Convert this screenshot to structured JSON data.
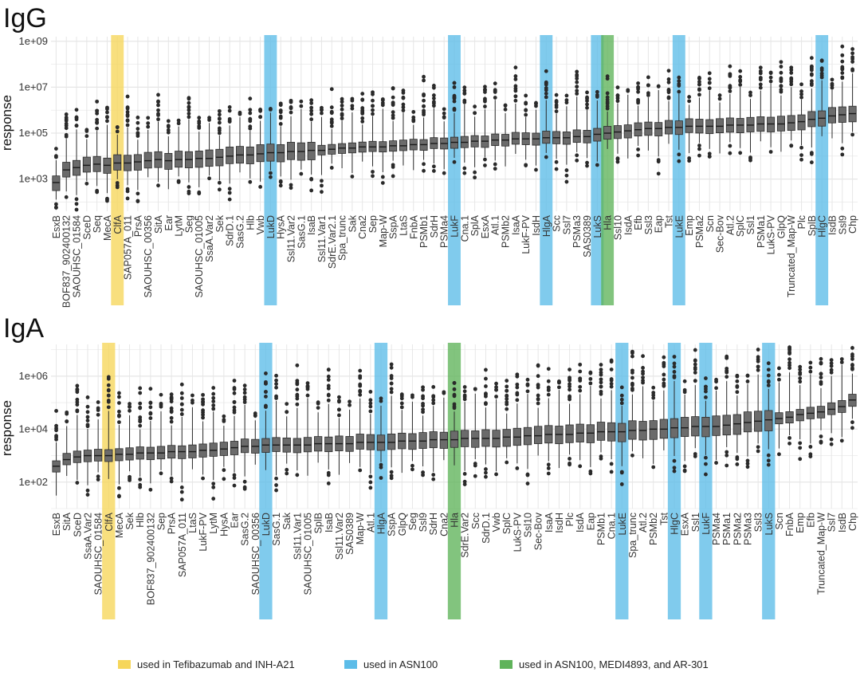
{
  "colors": {
    "yellow": "#f6d65a",
    "blue": "#5cbce8",
    "green": "#5fb35a",
    "box": "#6b6b6b",
    "stroke": "#2b2b2b",
    "grid": "#e6e6e6"
  },
  "legend": [
    {
      "key": "yellow",
      "label": "used in Tefibazumab and INH-A21"
    },
    {
      "key": "blue",
      "label": "used in ASN100"
    },
    {
      "key": "green",
      "label": "used in ASN100, MEDI4893, and AR-301"
    }
  ],
  "chart_data": [
    {
      "type": "boxplot",
      "title": "IgG",
      "ylabel": "response",
      "yscale": "log10",
      "ylim_log10": [
        1.6,
        9.2
      ],
      "yticks_log10": [
        3,
        5,
        7,
        9
      ],
      "ytick_labels": [
        "1e+03",
        "1e+05",
        "1e+07",
        "1e+09"
      ],
      "categories": [
        "EsxB",
        "BOF837_902400132",
        "SAOUHSC_01584",
        "SceD",
        "Seq",
        "MecA",
        "ClfA",
        "SAP057A_011",
        "PrsA",
        "SAOUHSC_00356",
        "SitA",
        "Ear",
        "LytM",
        "Seg",
        "SAOUHSC_01005",
        "SsaA.Var2",
        "Sek",
        "SdrD.1",
        "SasG.2",
        "Hlb",
        "Vwb",
        "LukD",
        "HysA",
        "Ssl11.Var2",
        "SasG.1",
        "IsaB",
        "Ssl11.Var1",
        "SdrE.Var2.1",
        "Spa_trunc",
        "Sak",
        "Cna2",
        "Sep",
        "Map-W",
        "SspA",
        "LtaS",
        "FnbA",
        "PSMb1",
        "SdrH",
        "PSMa4",
        "LukF",
        "Cna.1",
        "SplA",
        "EsxA",
        "Atl.1",
        "PSMb2",
        "IsaA",
        "LukF-PV",
        "IsdH",
        "HlgA",
        "Scc",
        "Ssl7",
        "PSMa3",
        "SAS0389",
        "LukS",
        "Hla",
        "Ssl10",
        "IsdA",
        "Efb",
        "Ssl3",
        "Eap",
        "Tst",
        "LukE",
        "Emp",
        "PSMa2",
        "Scn",
        "Sec-Bov",
        "Atl.2",
        "SplC",
        "Ssl1",
        "PSMa1",
        "LukS-PV",
        "GlpQ",
        "Truncated_Map-W",
        "Plc",
        "SplB",
        "HlgC",
        "IsdB",
        "Ssl9",
        "Chp"
      ],
      "medians_log10": [
        2.85,
        3.4,
        3.5,
        3.6,
        3.65,
        3.6,
        3.7,
        3.7,
        3.75,
        3.8,
        3.85,
        3.8,
        3.85,
        3.85,
        3.9,
        3.9,
        3.95,
        4.0,
        4.05,
        4.05,
        4.1,
        4.15,
        4.15,
        4.2,
        4.2,
        4.25,
        4.25,
        4.3,
        4.35,
        4.35,
        4.4,
        4.4,
        4.4,
        4.45,
        4.45,
        4.5,
        4.5,
        4.55,
        4.55,
        4.6,
        4.6,
        4.65,
        4.65,
        4.7,
        4.7,
        4.75,
        4.75,
        4.75,
        4.8,
        4.8,
        4.8,
        4.85,
        4.85,
        4.95,
        5.0,
        5.05,
        5.1,
        5.15,
        5.2,
        5.2,
        5.25,
        5.25,
        5.3,
        5.3,
        5.3,
        5.3,
        5.35,
        5.35,
        5.35,
        5.4,
        5.4,
        5.4,
        5.45,
        5.5,
        5.6,
        5.65,
        5.75,
        5.8,
        5.85
      ],
      "highlights": [
        {
          "index": 6,
          "color": "yellow"
        },
        {
          "index": 21,
          "color": "blue"
        },
        {
          "index": 39,
          "color": "blue"
        },
        {
          "index": 48,
          "color": "blue"
        },
        {
          "index": 53,
          "color": "blue"
        },
        {
          "index": 54,
          "color": "green"
        },
        {
          "index": 61,
          "color": "blue"
        },
        {
          "index": 75,
          "color": "blue"
        }
      ]
    },
    {
      "type": "boxplot",
      "title": "IgA",
      "ylabel": "response",
      "yscale": "log10",
      "ylim_log10": [
        1.0,
        7.2
      ],
      "yticks_log10": [
        2,
        4,
        6
      ],
      "ytick_labels": [
        "1e+02",
        "1e+04",
        "1e+06"
      ],
      "categories": [
        "EsxB",
        "SitA",
        "SceD",
        "SsaA.Var2",
        "SAOUHSC_01584",
        "ClfA",
        "MecA",
        "Sek",
        "Hlb",
        "BOF837_902400132",
        "Sep",
        "PrsA",
        "SAP057A_011",
        "LtaS",
        "LukF-PV",
        "LytM",
        "HysA",
        "Ear",
        "SasG.2",
        "SAOUHSC_00356",
        "LukD",
        "SasG.1",
        "Sak",
        "Ssl11.Var1",
        "SAOUHSC_01005",
        "SplB",
        "IsaB",
        "Ssl11.Var2",
        "SAS0389",
        "Map-W",
        "Atl.1",
        "HlgA",
        "SspA",
        "GlpQ",
        "Seg",
        "Ssl9",
        "SdrH",
        "Cna2",
        "Hla",
        "SdrE.Var2",
        "Scc",
        "SdrD.1",
        "Vwb",
        "SplC",
        "LukS-PV",
        "Ssl10",
        "Sec-Bov",
        "IsaA",
        "IsdH",
        "Plc",
        "IsdA",
        "Eap",
        "PSMb1",
        "Cna.1",
        "LukE",
        "Spa_trunc",
        "Atl.2",
        "PSMb2",
        "Tst",
        "HlgC",
        "EsxA",
        "Ssl1",
        "LukF",
        "PSMa4",
        "PSMa1",
        "PSMa2",
        "PSMa3",
        "Ssl3",
        "LukS",
        "Scn",
        "FnbA",
        "Emp",
        "Efb",
        "Truncated_Map-W",
        "Ssl7",
        "IsdB",
        "Chp"
      ],
      "medians_log10": [
        2.6,
        2.85,
        2.95,
        3.0,
        3.0,
        3.0,
        3.05,
        3.05,
        3.1,
        3.1,
        3.1,
        3.15,
        3.15,
        3.15,
        3.2,
        3.2,
        3.25,
        3.3,
        3.35,
        3.35,
        3.4,
        3.4,
        3.4,
        3.4,
        3.4,
        3.45,
        3.45,
        3.45,
        3.45,
        3.5,
        3.5,
        3.5,
        3.5,
        3.55,
        3.55,
        3.55,
        3.6,
        3.6,
        3.6,
        3.65,
        3.65,
        3.65,
        3.65,
        3.7,
        3.7,
        3.75,
        3.75,
        3.8,
        3.8,
        3.8,
        3.85,
        3.85,
        3.9,
        3.9,
        3.9,
        3.95,
        3.95,
        4.0,
        4.0,
        4.05,
        4.05,
        4.1,
        4.1,
        4.1,
        4.15,
        4.2,
        4.25,
        4.3,
        4.35,
        4.4,
        4.45,
        4.55,
        4.6,
        4.65,
        4.75,
        4.85,
        5.1
      ],
      "highlights": [
        {
          "index": 5,
          "color": "yellow"
        },
        {
          "index": 20,
          "color": "blue"
        },
        {
          "index": 31,
          "color": "blue"
        },
        {
          "index": 38,
          "color": "green"
        },
        {
          "index": 54,
          "color": "blue"
        },
        {
          "index": 59,
          "color": "blue"
        },
        {
          "index": 62,
          "color": "blue"
        },
        {
          "index": 68,
          "color": "blue"
        }
      ]
    }
  ]
}
